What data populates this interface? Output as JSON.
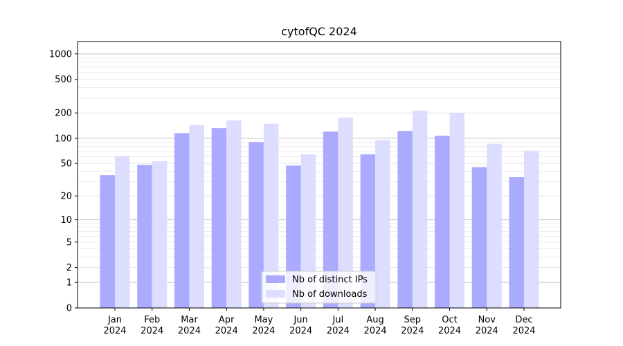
{
  "chart_data": {
    "type": "bar",
    "title": "cytofQC 2024",
    "xlabel": "",
    "ylabel": "",
    "yscale": "log1p",
    "y_ticks": [
      0,
      1,
      2,
      5,
      10,
      20,
      50,
      100,
      200,
      500,
      1000
    ],
    "y_tick_labels": [
      "0",
      "1",
      "2",
      "5",
      "10",
      "20",
      "50",
      "100",
      "200",
      "500",
      "1000"
    ],
    "ylim": [
      0,
      1400
    ],
    "grid": true,
    "legend_position": "bottom-center",
    "categories": [
      [
        "Jan",
        "2024"
      ],
      [
        "Feb",
        "2024"
      ],
      [
        "Mar",
        "2024"
      ],
      [
        "Apr",
        "2024"
      ],
      [
        "May",
        "2024"
      ],
      [
        "Jun",
        "2024"
      ],
      [
        "Jul",
        "2024"
      ],
      [
        "Aug",
        "2024"
      ],
      [
        "Sep",
        "2024"
      ],
      [
        "Oct",
        "2024"
      ],
      [
        "Nov",
        "2024"
      ],
      [
        "Dec",
        "2024"
      ]
    ],
    "series": [
      {
        "name": "Nb of distinct IPs",
        "color": "#aaaaff",
        "values": [
          36,
          48,
          115,
          132,
          90,
          47,
          120,
          64,
          122,
          107,
          45,
          34
        ]
      },
      {
        "name": "Nb of downloads",
        "color": "#ddddff",
        "values": [
          61,
          53,
          144,
          163,
          149,
          64,
          176,
          95,
          213,
          200,
          86,
          71
        ]
      }
    ]
  }
}
